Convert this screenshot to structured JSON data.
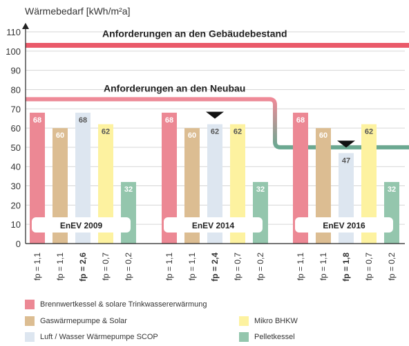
{
  "chart_data": {
    "type": "bar",
    "ylabel": "Wärmebedarf [kWh/m²a]",
    "ylim": [
      0,
      110
    ],
    "y_ticks": [
      0,
      10,
      20,
      30,
      40,
      50,
      60,
      70,
      80,
      90,
      100,
      110
    ],
    "reference_lines": [
      {
        "label": "Anforderungen an den Gebäudebestand",
        "value": 103,
        "color": "#ea5a6a"
      },
      {
        "label": "Anforderungen an den Neubau",
        "segments": [
          {
            "group": "EnEV 2009",
            "value": 75
          },
          {
            "group": "EnEV 2014",
            "value": 75
          },
          {
            "group": "EnEV 2016",
            "value": 50
          }
        ],
        "color_start": "#ef8a98",
        "color_end": "#6aa891"
      }
    ],
    "series": [
      {
        "name": "Brennwertkessel & solare Trinkwassererwärmung",
        "color": "#ec8894"
      },
      {
        "name": "Gaswärmepumpe & Solar",
        "color": "#dcbd92"
      },
      {
        "name": "Luft / Wasser Wärmepumpe SCOP",
        "color": "#dde6f0"
      },
      {
        "name": "Mikro BHKW",
        "color": "#fdf2a0"
      },
      {
        "name": "Pelletkessel",
        "color": "#94c6ad"
      }
    ],
    "groups": [
      {
        "label": "EnEV 2009",
        "values": [
          68,
          60,
          68,
          62,
          32
        ],
        "fp": [
          "fp = 1,1",
          "fp = 1,1",
          "fp = 2,6",
          "fp = 0,7",
          "fp = 0,2"
        ],
        "fp_bold": [
          false,
          false,
          true,
          false,
          false
        ],
        "marker_index": null
      },
      {
        "label": "EnEV 2014",
        "values": [
          68,
          60,
          62,
          62,
          32
        ],
        "fp": [
          "fp = 1,1",
          "fp = 1,1",
          "fp = 2,4",
          "fp = 0,7",
          "fp = 0,2"
        ],
        "fp_bold": [
          false,
          false,
          true,
          false,
          false
        ],
        "marker_index": 2
      },
      {
        "label": "EnEV 2016",
        "values": [
          68,
          60,
          47,
          62,
          32
        ],
        "fp": [
          "fp = 1,1",
          "fp = 1,1",
          "fp = 1,8",
          "fp = 0,7",
          "fp = 0,2"
        ],
        "fp_bold": [
          false,
          false,
          true,
          false,
          false
        ],
        "marker_index": 2
      }
    ]
  },
  "legend": {
    "items": [
      "Brennwertkessel & solare Trinkwassererwärmung",
      "Gaswärmepumpe & Solar",
      "Mikro BHKW",
      "Luft / Wasser Wärmepumpe SCOP",
      "Pelletkessel"
    ]
  }
}
